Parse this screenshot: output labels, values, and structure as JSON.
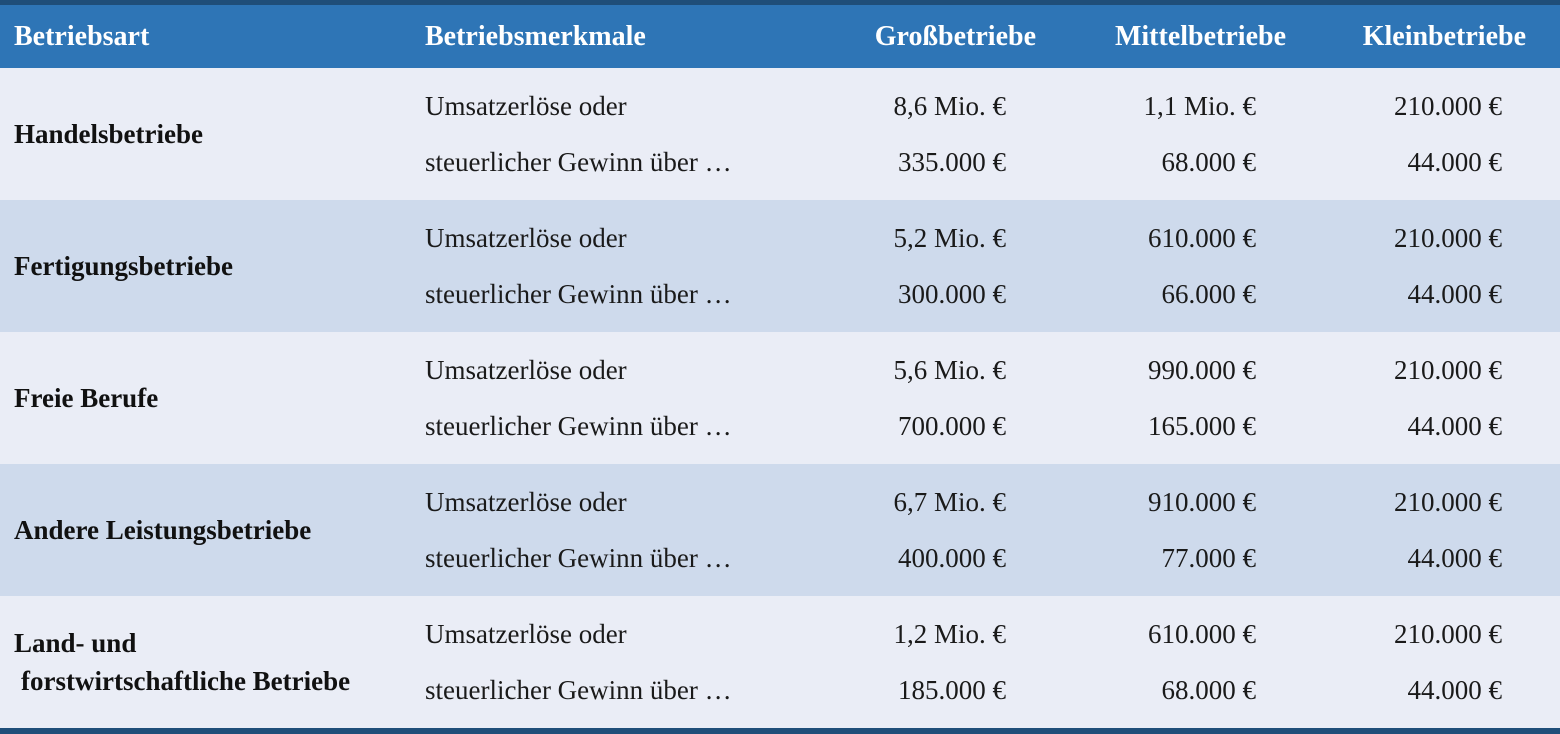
{
  "colors": {
    "header_bg": "#2E75B6",
    "border_navy": "#1F4E79",
    "row_light": "#EAEDF6",
    "row_shaded": "#CEDAEC",
    "header_text": "#FFFFFF",
    "body_text": "#1A1A1A"
  },
  "table": {
    "columns": [
      {
        "label": "Betriebsart"
      },
      {
        "label": "Betriebsmerkmale"
      },
      {
        "label": "Großbetriebe"
      },
      {
        "label": "Mittelbetriebe"
      },
      {
        "label": "Kleinbetriebe"
      }
    ],
    "rows": [
      {
        "betriebsart": [
          "Handelsbetriebe"
        ],
        "betriebsmerkmale": [
          "Umsatzerlöse oder",
          "steuerlicher Gewinn über …"
        ],
        "grossbetriebe": [
          "8,6 Mio. €",
          "335.000 €"
        ],
        "mittelbetriebe": [
          "1,1 Mio. €",
          "68.000 €"
        ],
        "kleinbetriebe": [
          "210.000 €",
          "44.000 €"
        ]
      },
      {
        "betriebsart": [
          "Fertigungsbetriebe"
        ],
        "betriebsmerkmale": [
          "Umsatzerlöse oder",
          "steuerlicher Gewinn über …"
        ],
        "grossbetriebe": [
          "5,2 Mio. €",
          "300.000 €"
        ],
        "mittelbetriebe": [
          "610.000 €",
          "66.000 €"
        ],
        "kleinbetriebe": [
          "210.000 €",
          "44.000 €"
        ]
      },
      {
        "betriebsart": [
          "Freie Berufe"
        ],
        "betriebsmerkmale": [
          "Umsatzerlöse oder",
          "steuerlicher Gewinn über …"
        ],
        "grossbetriebe": [
          "5,6 Mio. €",
          "700.000 €"
        ],
        "mittelbetriebe": [
          "990.000 €",
          "165.000 €"
        ],
        "kleinbetriebe": [
          "210.000 €",
          "44.000 €"
        ]
      },
      {
        "betriebsart": [
          "Andere Leistungsbetriebe"
        ],
        "betriebsmerkmale": [
          "Umsatzerlöse oder",
          "steuerlicher Gewinn über …"
        ],
        "grossbetriebe": [
          "6,7 Mio. €",
          "400.000 €"
        ],
        "mittelbetriebe": [
          "910.000 €",
          "77.000 €"
        ],
        "kleinbetriebe": [
          "210.000 €",
          "44.000 €"
        ]
      },
      {
        "betriebsart": [
          "Land- und",
          "forstwirtschaftliche Betriebe"
        ],
        "betriebsmerkmale": [
          "Umsatzerlöse oder",
          "steuerlicher Gewinn über …"
        ],
        "grossbetriebe": [
          "1,2 Mio. €",
          "185.000 €"
        ],
        "mittelbetriebe": [
          "610.000 €",
          "68.000 €"
        ],
        "kleinbetriebe": [
          "210.000 €",
          "44.000 €"
        ]
      }
    ]
  }
}
